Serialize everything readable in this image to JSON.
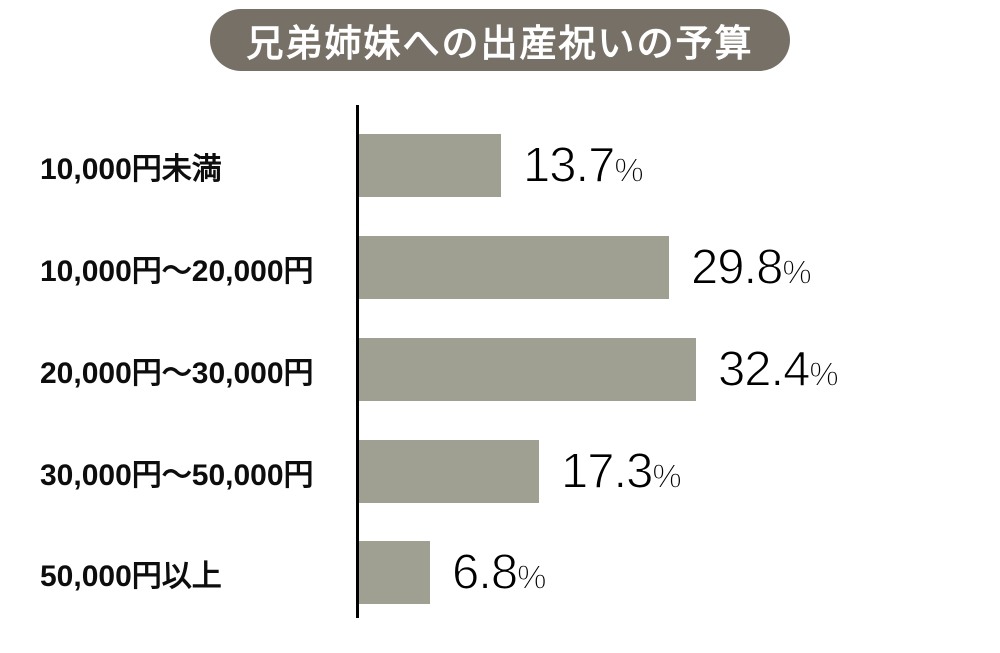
{
  "title": "兄弟姉妹への出産祝いの予算",
  "chart_data": {
    "type": "bar",
    "orientation": "horizontal",
    "title": "兄弟姉妹への出産祝いの予算",
    "categories": [
      "10,000円未満",
      "10,000円〜20,000円",
      "20,000円〜30,000円",
      "30,000円〜50,000円",
      "50,000円以上"
    ],
    "values": [
      13.7,
      29.8,
      32.4,
      17.3,
      6.8
    ],
    "value_labels": [
      "13.7",
      "29.8",
      "32.4",
      "17.3",
      "6.8"
    ],
    "unit": "%",
    "xlabel": "",
    "ylabel": "",
    "xlim": [
      0,
      35
    ],
    "grid": false,
    "legend": false,
    "bar_color": "#9fa092",
    "axis_color": "#000000"
  },
  "colors": {
    "background": "#ffffff",
    "badge_bg": "#767066",
    "badge_text": "#ffffff",
    "bar": "#9fa092",
    "label_text": "#0d0d0d",
    "axis": "#000000"
  }
}
